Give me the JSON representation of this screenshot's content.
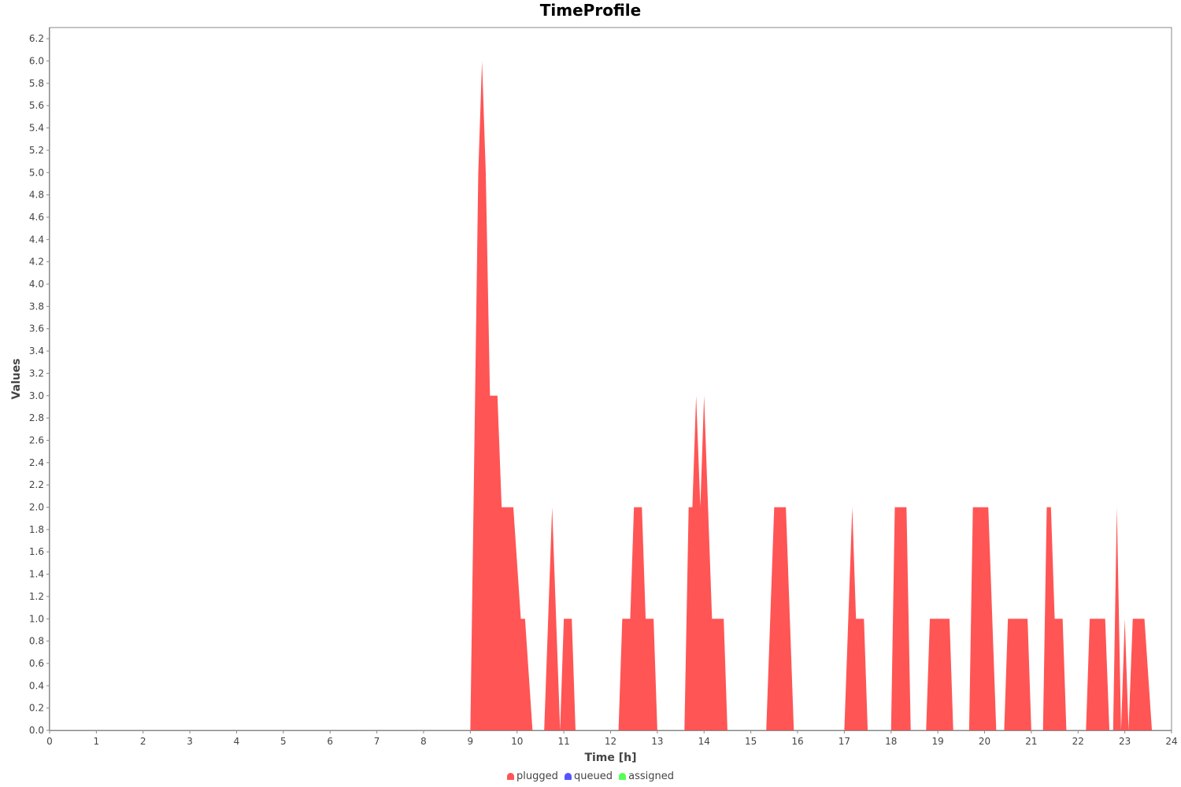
{
  "chart_data": {
    "type": "area",
    "title": "TimeProfile",
    "xlabel": "Time [h]",
    "ylabel": "Values",
    "xlim": [
      0,
      24
    ],
    "ylim": [
      0,
      6.3
    ],
    "x_ticks": [
      "0",
      "1",
      "2",
      "3",
      "4",
      "5",
      "6",
      "7",
      "8",
      "9",
      "10",
      "11",
      "12",
      "13",
      "14",
      "15",
      "16",
      "17",
      "18",
      "19",
      "20",
      "21",
      "22",
      "23",
      "24"
    ],
    "y_ticks": [
      "0.0",
      "0.2",
      "0.4",
      "0.6",
      "0.8",
      "1.0",
      "1.2",
      "1.4",
      "1.6",
      "1.8",
      "2.0",
      "2.2",
      "2.4",
      "2.6",
      "2.8",
      "3.0",
      "3.2",
      "3.4",
      "3.6",
      "3.8",
      "4.0",
      "4.2",
      "4.4",
      "4.6",
      "4.8",
      "5.0",
      "5.2",
      "5.4",
      "5.6",
      "5.8",
      "6.0",
      "6.2"
    ],
    "grid": false,
    "legend_position": "bottom",
    "series": [
      {
        "name": "plugged",
        "color": "#ff5555",
        "points": [
          [
            0,
            0
          ],
          [
            9.0,
            0
          ],
          [
            9.17,
            5
          ],
          [
            9.25,
            6
          ],
          [
            9.33,
            5
          ],
          [
            9.42,
            3
          ],
          [
            9.58,
            3
          ],
          [
            9.67,
            2
          ],
          [
            9.92,
            2
          ],
          [
            10.08,
            1
          ],
          [
            10.17,
            1
          ],
          [
            10.33,
            0
          ],
          [
            10.58,
            0
          ],
          [
            10.75,
            2
          ],
          [
            10.92,
            0
          ],
          [
            11.0,
            1
          ],
          [
            11.17,
            1
          ],
          [
            11.25,
            0
          ],
          [
            12.17,
            0
          ],
          [
            12.25,
            1
          ],
          [
            12.42,
            1
          ],
          [
            12.5,
            2
          ],
          [
            12.67,
            2
          ],
          [
            12.75,
            1
          ],
          [
            12.92,
            1
          ],
          [
            13.0,
            0
          ],
          [
            13.58,
            0
          ],
          [
            13.67,
            2
          ],
          [
            13.75,
            2
          ],
          [
            13.83,
            3
          ],
          [
            13.92,
            2
          ],
          [
            14.0,
            3
          ],
          [
            14.17,
            1
          ],
          [
            14.42,
            1
          ],
          [
            14.5,
            0
          ],
          [
            15.33,
            0
          ],
          [
            15.5,
            2
          ],
          [
            15.75,
            2
          ],
          [
            15.92,
            0
          ],
          [
            17.0,
            0
          ],
          [
            17.17,
            2
          ],
          [
            17.25,
            1
          ],
          [
            17.42,
            1
          ],
          [
            17.5,
            0
          ],
          [
            18.0,
            0
          ],
          [
            18.08,
            2
          ],
          [
            18.33,
            2
          ],
          [
            18.42,
            0
          ],
          [
            18.75,
            0
          ],
          [
            18.83,
            1
          ],
          [
            19.25,
            1
          ],
          [
            19.33,
            0
          ],
          [
            19.67,
            0
          ],
          [
            19.75,
            2
          ],
          [
            20.08,
            2
          ],
          [
            20.25,
            0
          ],
          [
            20.42,
            0
          ],
          [
            20.5,
            1
          ],
          [
            20.92,
            1
          ],
          [
            21.0,
            0
          ],
          [
            21.25,
            0
          ],
          [
            21.33,
            2
          ],
          [
            21.42,
            2
          ],
          [
            21.5,
            1
          ],
          [
            21.67,
            1
          ],
          [
            21.75,
            0
          ],
          [
            22.17,
            0
          ],
          [
            22.25,
            1
          ],
          [
            22.58,
            1
          ],
          [
            22.67,
            0
          ],
          [
            22.75,
            0
          ],
          [
            22.83,
            2
          ],
          [
            22.92,
            0
          ],
          [
            23.0,
            1
          ],
          [
            23.08,
            0
          ],
          [
            23.17,
            1
          ],
          [
            23.42,
            1
          ],
          [
            23.58,
            0
          ],
          [
            24,
            0
          ]
        ]
      },
      {
        "name": "queued",
        "color": "#5555ff",
        "points": []
      },
      {
        "name": "assigned",
        "color": "#55ff55",
        "points": []
      }
    ]
  }
}
